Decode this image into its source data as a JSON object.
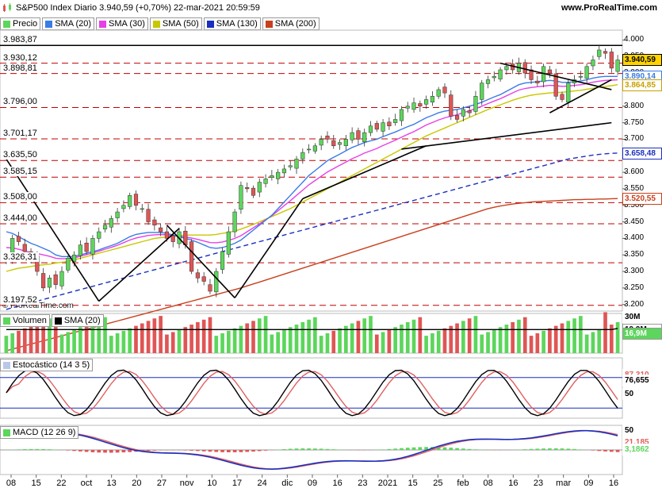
{
  "header": {
    "title": "S&P500 Index Diario 3.940,59 (+0,70%) 22-mar-2021 20:59:59",
    "site": "www.ProRealTime.com"
  },
  "watermark": "© ProRealTime.com",
  "colors": {
    "price_up": "#5cd65c",
    "price_down": "#e05555",
    "sma20": "#3a7be8",
    "sma30": "#e640e6",
    "sma50": "#c8c800",
    "sma130": "#1a2fbf",
    "sma200": "#c8401c",
    "volume_sma": "#000000",
    "stoch_k": "#000000",
    "stoch_d": "#e06060",
    "stoch_fill": "#b8c8e8",
    "macd_line": "#1a2fbf",
    "macd_signal": "#e06060",
    "macd_hist_up": "#5cd65c",
    "macd_hist_down": "#e05555",
    "hline": "#c00000"
  },
  "legend": [
    {
      "label": "Precio",
      "color": "#5cd65c",
      "icon": "candle-icon"
    },
    {
      "label": "SMA (20)",
      "color": "#3a7be8"
    },
    {
      "label": "SMA (30)",
      "color": "#e640e6"
    },
    {
      "label": "SMA (50)",
      "color": "#c8c800"
    },
    {
      "label": "SMA (130)",
      "color": "#1a2fbf"
    },
    {
      "label": "SMA (200)",
      "color": "#c8401c"
    }
  ],
  "price_axis_ticks": [
    "4.000",
    "3.950",
    "3.900",
    "3.850",
    "3.800",
    "3.750",
    "3.700",
    "3.650",
    "3.600",
    "3.550",
    "3.500",
    "3.450",
    "3.400",
    "3.350",
    "3.300",
    "3.250",
    "3.200"
  ],
  "horizontal_levels": [
    "3.983,87",
    "3.930,12",
    "3.898,81",
    "3.796,00",
    "3.701,17",
    "3.635,50",
    "3.585,15",
    "3.508,00",
    "3.444,00",
    "3.326,31",
    "3.197,52"
  ],
  "right_values": [
    {
      "label": "3.940,59",
      "bg": "#ffd200",
      "fg": "#000000",
      "price": 3940.59
    },
    {
      "label": "3.890,14",
      "bg": "#ffffff",
      "fg": "#3a7be8",
      "price": 3890.14
    },
    {
      "label": "3.864,85",
      "bg": "#ffffff",
      "fg": "#c8a000",
      "price": 3864.85
    },
    {
      "label": "3.658,48",
      "bg": "#ffffff",
      "fg": "#1a2fbf",
      "price": 3658.48
    },
    {
      "label": "3.520,55",
      "bg": "#ffffff",
      "fg": "#c8401c",
      "price": 3520.55
    }
  ],
  "volume": {
    "label": "Volumen",
    "sma_label": "SMA (20)",
    "ticks": [
      "30M",
      "19,9M",
      "16,9M"
    ]
  },
  "stochastic": {
    "label": "Estocástico (14 3 5)",
    "ticks": [
      "87,310",
      "76,655",
      "50"
    ]
  },
  "macd": {
    "label": "MACD (12 26 9)",
    "ticks": [
      "50",
      "24,374",
      "21,185",
      "3,1862"
    ]
  },
  "x_labels": [
    "08",
    "15",
    "22",
    "oct",
    "13",
    "20",
    "27",
    "nov",
    "10",
    "17",
    "24",
    "dic",
    "09",
    "16",
    "23",
    "2021",
    "15",
    "25",
    "feb",
    "08",
    "16",
    "23",
    "mar",
    "09",
    "16"
  ],
  "chart_data": {
    "type": "candlestick",
    "title": "S&P500 Index Diario",
    "period": "2020-09-08 to 2021-03-22",
    "last_price": 3940.59,
    "change_pct": 0.7,
    "ylim": [
      3180,
      4030
    ],
    "closes": [
      3340,
      3400,
      3390,
      3360,
      3340,
      3300,
      3250,
      3280,
      3260,
      3300,
      3340,
      3350,
      3380,
      3360,
      3400,
      3420,
      3440,
      3460,
      3480,
      3500,
      3530,
      3500,
      3490,
      3450,
      3440,
      3420,
      3400,
      3390,
      3420,
      3380,
      3300,
      3280,
      3270,
      3240,
      3300,
      3360,
      3420,
      3480,
      3560,
      3550,
      3530,
      3570,
      3580,
      3590,
      3600,
      3610,
      3620,
      3640,
      3660,
      3670,
      3680,
      3700,
      3700,
      3680,
      3690,
      3700,
      3720,
      3700,
      3720,
      3740,
      3730,
      3750,
      3740,
      3760,
      3790,
      3800,
      3810,
      3800,
      3820,
      3830,
      3850,
      3840,
      3770,
      3760,
      3790,
      3780,
      3830,
      3870,
      3880,
      3890,
      3910,
      3920,
      3910,
      3930,
      3900,
      3880,
      3870,
      3920,
      3900,
      3830,
      3820,
      3870,
      3880,
      3890,
      3920,
      3940,
      3970,
      3960,
      3915,
      3940
    ],
    "sma20": [
      3420,
      3415,
      3405,
      3395,
      3385,
      3378,
      3370,
      3362,
      3350,
      3345,
      3345,
      3345,
      3350,
      3355,
      3360,
      3365,
      3372,
      3378,
      3385,
      3395,
      3405,
      3412,
      3415,
      3418,
      3418,
      3418,
      3415,
      3410,
      3405,
      3400,
      3395,
      3388,
      3380,
      3372,
      3370,
      3372,
      3378,
      3385,
      3395,
      3410,
      3425,
      3440,
      3455,
      3470,
      3490,
      3510,
      3530,
      3550,
      3570,
      3590,
      3605,
      3620,
      3635,
      3645,
      3655,
      3665,
      3675,
      3682,
      3690,
      3695,
      3700,
      3708,
      3715,
      3722,
      3730,
      3738,
      3745,
      3755,
      3765,
      3772,
      3780,
      3785,
      3788,
      3790,
      3795,
      3800,
      3805,
      3812,
      3820,
      3828,
      3835,
      3845,
      3855,
      3865,
      3870,
      3872,
      3874,
      3876,
      3878,
      3876,
      3872,
      3872,
      3874,
      3876,
      3880,
      3885,
      3888,
      3890,
      3890,
      3890
    ],
    "sma50": [
      3300,
      3305,
      3310,
      3312,
      3315,
      3318,
      3320,
      3322,
      3325,
      3328,
      3330,
      3335,
      3340,
      3345,
      3350,
      3355,
      3360,
      3365,
      3370,
      3375,
      3380,
      3385,
      3390,
      3395,
      3400,
      3402,
      3404,
      3406,
      3408,
      3410,
      3410,
      3410,
      3410,
      3410,
      3412,
      3415,
      3418,
      3422,
      3428,
      3435,
      3442,
      3450,
      3458,
      3466,
      3474,
      3482,
      3490,
      3500,
      3510,
      3520,
      3530,
      3540,
      3550,
      3560,
      3570,
      3580,
      3590,
      3600,
      3610,
      3620,
      3630,
      3640,
      3650,
      3660,
      3670,
      3680,
      3690,
      3700,
      3710,
      3718,
      3726,
      3734,
      3742,
      3750,
      3758,
      3766,
      3774,
      3782,
      3790,
      3797,
      3804,
      3811,
      3818,
      3824,
      3829,
      3833,
      3836,
      3838,
      3840,
      3841,
      3842,
      3844,
      3846,
      3848,
      3851,
      3854,
      3857,
      3860,
      3862,
      3865
    ],
    "sma130": [
      3185,
      3190,
      3195,
      3200,
      3205,
      3210,
      3215,
      3220,
      3225,
      3230,
      3235,
      3240,
      3245,
      3250,
      3255,
      3260,
      3265,
      3270,
      3275,
      3280,
      3285,
      3290,
      3295,
      3300,
      3305,
      3310,
      3315,
      3320,
      3325,
      3330,
      3335,
      3340,
      3345,
      3350,
      3355,
      3360,
      3365,
      3370,
      3375,
      3380,
      3385,
      3390,
      3395,
      3400,
      3405,
      3410,
      3415,
      3420,
      3425,
      3430,
      3435,
      3440,
      3445,
      3450,
      3455,
      3460,
      3465,
      3470,
      3475,
      3480,
      3485,
      3490,
      3495,
      3500,
      3505,
      3510,
      3515,
      3520,
      3525,
      3530,
      3535,
      3540,
      3545,
      3550,
      3555,
      3560,
      3565,
      3570,
      3575,
      3580,
      3585,
      3590,
      3595,
      3600,
      3605,
      3610,
      3615,
      3620,
      3625,
      3630,
      3635,
      3640,
      3643,
      3646,
      3649,
      3652,
      3654,
      3656,
      3657,
      3658
    ],
    "sma200": [
      3060,
      3065,
      3070,
      3075,
      3080,
      3085,
      3090,
      3095,
      3100,
      3105,
      3110,
      3115,
      3120,
      3125,
      3130,
      3135,
      3140,
      3145,
      3150,
      3155,
      3160,
      3165,
      3170,
      3175,
      3180,
      3185,
      3190,
      3195,
      3200,
      3205,
      3210,
      3215,
      3220,
      3225,
      3230,
      3235,
      3240,
      3245,
      3250,
      3256,
      3262,
      3268,
      3274,
      3280,
      3286,
      3292,
      3298,
      3304,
      3310,
      3316,
      3322,
      3328,
      3334,
      3340,
      3346,
      3352,
      3358,
      3364,
      3370,
      3376,
      3382,
      3388,
      3394,
      3400,
      3406,
      3412,
      3418,
      3424,
      3430,
      3436,
      3442,
      3448,
      3454,
      3460,
      3466,
      3472,
      3478,
      3484,
      3490,
      3494,
      3498,
      3501,
      3504,
      3506,
      3508,
      3510,
      3511,
      3512,
      3513,
      3514,
      3515,
      3516,
      3517,
      3517,
      3518,
      3518,
      3519,
      3519,
      3520,
      3520.55
    ],
    "volume_sma": [
      19,
      19,
      19,
      19,
      19,
      19,
      19,
      19,
      19,
      19,
      19,
      19,
      19,
      19,
      19,
      19,
      19,
      19,
      19,
      19,
      19,
      19,
      19,
      19,
      19,
      19,
      19,
      19,
      19,
      19,
      19,
      19,
      19,
      19,
      19,
      19,
      19,
      19,
      19,
      19,
      19,
      19,
      19,
      19,
      19,
      19,
      19,
      19,
      19,
      19,
      19,
      19,
      19,
      19,
      19,
      19,
      19,
      19,
      19,
      19,
      19,
      19,
      19,
      19,
      19,
      19,
      19,
      19,
      19,
      19,
      19,
      19,
      19,
      19,
      19,
      19,
      19,
      19,
      19,
      19,
      19,
      19,
      19,
      19,
      19,
      19,
      19,
      19,
      19,
      19,
      19,
      19,
      19,
      19,
      19,
      19,
      19,
      19,
      19,
      19.9
    ],
    "last_volume": 16.9,
    "stoch_k_last": 76.655,
    "stoch_d_last": 87.31,
    "macd_last": 24.374,
    "macd_signal_last": 21.185,
    "macd_hist_last": 3.1862
  }
}
